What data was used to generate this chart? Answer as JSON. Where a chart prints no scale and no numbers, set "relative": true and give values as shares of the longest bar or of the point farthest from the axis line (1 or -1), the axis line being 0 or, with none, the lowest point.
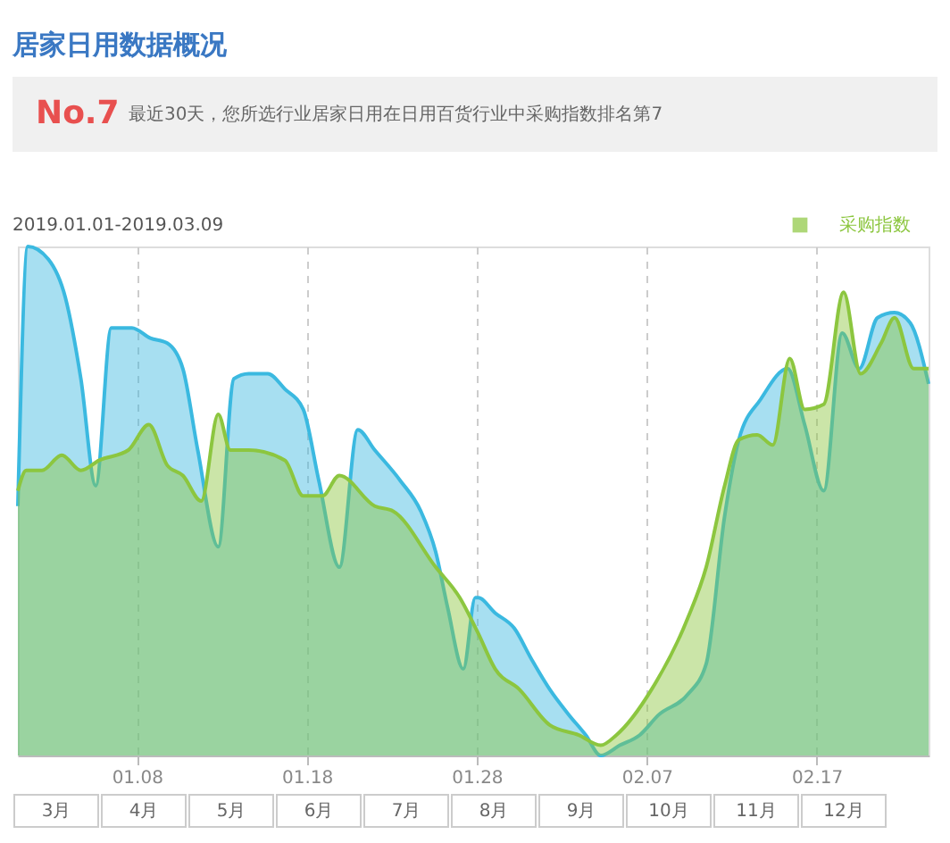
{
  "chart_data": {
    "type": "area",
    "title": "居家日用数据概况",
    "relative": true,
    "annotations": [
      "No.7",
      "最近30天，您所选行业居家日用在日用百货行业中采购指数排名第7",
      "2019.01.01-2019.03.09",
      "3月",
      "4月",
      "5月",
      "6月",
      "7月",
      "8月",
      "9月",
      "10月",
      "11月",
      "12月"
    ],
    "xlim": [
      "2019-01-01",
      "2019-02-23T14:00"
    ],
    "xticks": [
      {
        "value": "2019-01-08",
        "label": "01.08"
      },
      {
        "value": "2019-01-18",
        "label": "01.18"
      },
      {
        "value": "2019-01-28",
        "label": "01.28"
      },
      {
        "value": "2019-02-07",
        "label": "02.07"
      },
      {
        "value": "2019-02-17",
        "label": "02.17"
      }
    ],
    "grid": "x",
    "legend": "top right",
    "tick_labels": "x",
    "series": [
      {
        "color": "#3bb9e0",
        "x": [
          "2019-01-01",
          "2019-01-01T14:00",
          "2019-01-02T19:00",
          "2019-01-03T19:00",
          "2019-01-04T17:00",
          "2019-01-05T14:00",
          "2019-01-06T12:00",
          "2019-01-07T17:00",
          "2019-01-08T19:00",
          "2019-01-09T19:00",
          "2019-01-10T17:00",
          "2019-01-11T14:00",
          "2019-01-12T19:00",
          "2019-01-13T17:00",
          "2019-01-14T14:00",
          "2019-01-15T17:00",
          "2019-01-16T17:00",
          "2019-01-17T19:00",
          "2019-01-18T17:00",
          "2019-01-19T22:00",
          "2019-01-21",
          "2019-01-22",
          "2019-01-23T12:00",
          "2019-01-24T17:00",
          "2019-01-25T14:00",
          "2019-01-26T07:00",
          "2019-01-27T05:00",
          "2019-01-27T22:00",
          "2019-01-28T02:00",
          "2019-01-29T02:00",
          "2019-01-30T05:00",
          "2019-01-31T05:00",
          "2019-02-01T07:00",
          "2019-02-02T10:00",
          "2019-02-03T10:00",
          "2019-02-04T07:00",
          "2019-02-05T10:00",
          "2019-02-06T14:00",
          "2019-02-07T17:00",
          "2019-02-09T10:00",
          "2019-02-10T12:00",
          "2019-02-11T14:00",
          "2019-02-12T10:00",
          "2019-02-13T17:00",
          "2019-02-15T07:00",
          "2019-02-16T07:00",
          "2019-02-17T10:00",
          "2019-02-18T12:00",
          "2019-02-19T12:00",
          "2019-02-20T14:00",
          "2019-02-21T14:00",
          "2019-02-22T12:00",
          "2019-02-23T14:00"
        ],
        "values": [
          0.49,
          1.0,
          0.975,
          0.9,
          0.74,
          0.53,
          0.84,
          0.84,
          0.82,
          0.81,
          0.76,
          0.6,
          0.41,
          0.74,
          0.75,
          0.75,
          0.72,
          0.68,
          0.54,
          0.37,
          0.64,
          0.6,
          0.54,
          0.48,
          0.4,
          0.29,
          0.17,
          0.31,
          0.31,
          0.28,
          0.25,
          0.19,
          0.13,
          0.08,
          0.04,
          0.0,
          0.02,
          0.04,
          0.08,
          0.12,
          0.18,
          0.47,
          0.62,
          0.7,
          0.76,
          0.65,
          0.52,
          0.83,
          0.76,
          0.86,
          0.87,
          0.85,
          0.73
        ]
      },
      {
        "name": "采购指数",
        "color": "#8cc63f",
        "x": [
          "2019-01-01",
          "2019-01-01T12:00",
          "2019-01-02T10:00",
          "2019-01-03T14:00",
          "2019-01-04T17:00",
          "2019-01-05T19:00",
          "2019-01-07T12:00",
          "2019-01-08T17:00",
          "2019-01-09T19:00",
          "2019-01-10T17:00",
          "2019-01-11T19:00",
          "2019-01-12T19:00",
          "2019-01-13T12:00",
          "2019-01-14T14:00",
          "2019-01-16T17:00",
          "2019-01-17T19:00",
          "2019-01-18T22:00",
          "2019-01-19T22:00",
          "2019-01-22",
          "2019-01-23T02:00",
          "2019-01-25T14:00",
          "2019-01-27",
          "2019-01-28T02:00",
          "2019-01-29T02:00",
          "2019-01-30T12:00",
          "2019-02-01T07:00",
          "2019-02-03",
          "2019-02-04T07:00",
          "2019-02-05T05:00",
          "2019-02-07T07:00",
          "2019-02-09T10:00",
          "2019-02-10T12:00",
          "2019-02-11T14:00",
          "2019-02-12T10:00",
          "2019-02-13T12:00",
          "2019-02-14T10:00",
          "2019-02-15T10:00",
          "2019-02-16T07:00",
          "2019-02-17T10:00",
          "2019-02-18T14:00",
          "2019-02-19T14:00",
          "2019-02-20T19:00",
          "2019-02-21T14:00",
          "2019-02-22T17:00",
          "2019-02-23T14:00"
        ],
        "values": [
          0.52,
          0.56,
          0.56,
          0.59,
          0.56,
          0.58,
          0.6,
          0.65,
          0.57,
          0.55,
          0.5,
          0.67,
          0.6,
          0.6,
          0.58,
          0.51,
          0.51,
          0.55,
          0.49,
          0.48,
          0.37,
          0.31,
          0.24,
          0.17,
          0.13,
          0.06,
          0.04,
          0.02,
          0.04,
          0.13,
          0.27,
          0.37,
          0.53,
          0.62,
          0.63,
          0.61,
          0.78,
          0.68,
          0.69,
          0.91,
          0.75,
          0.81,
          0.86,
          0.76,
          0.76
        ]
      }
    ]
  }
}
